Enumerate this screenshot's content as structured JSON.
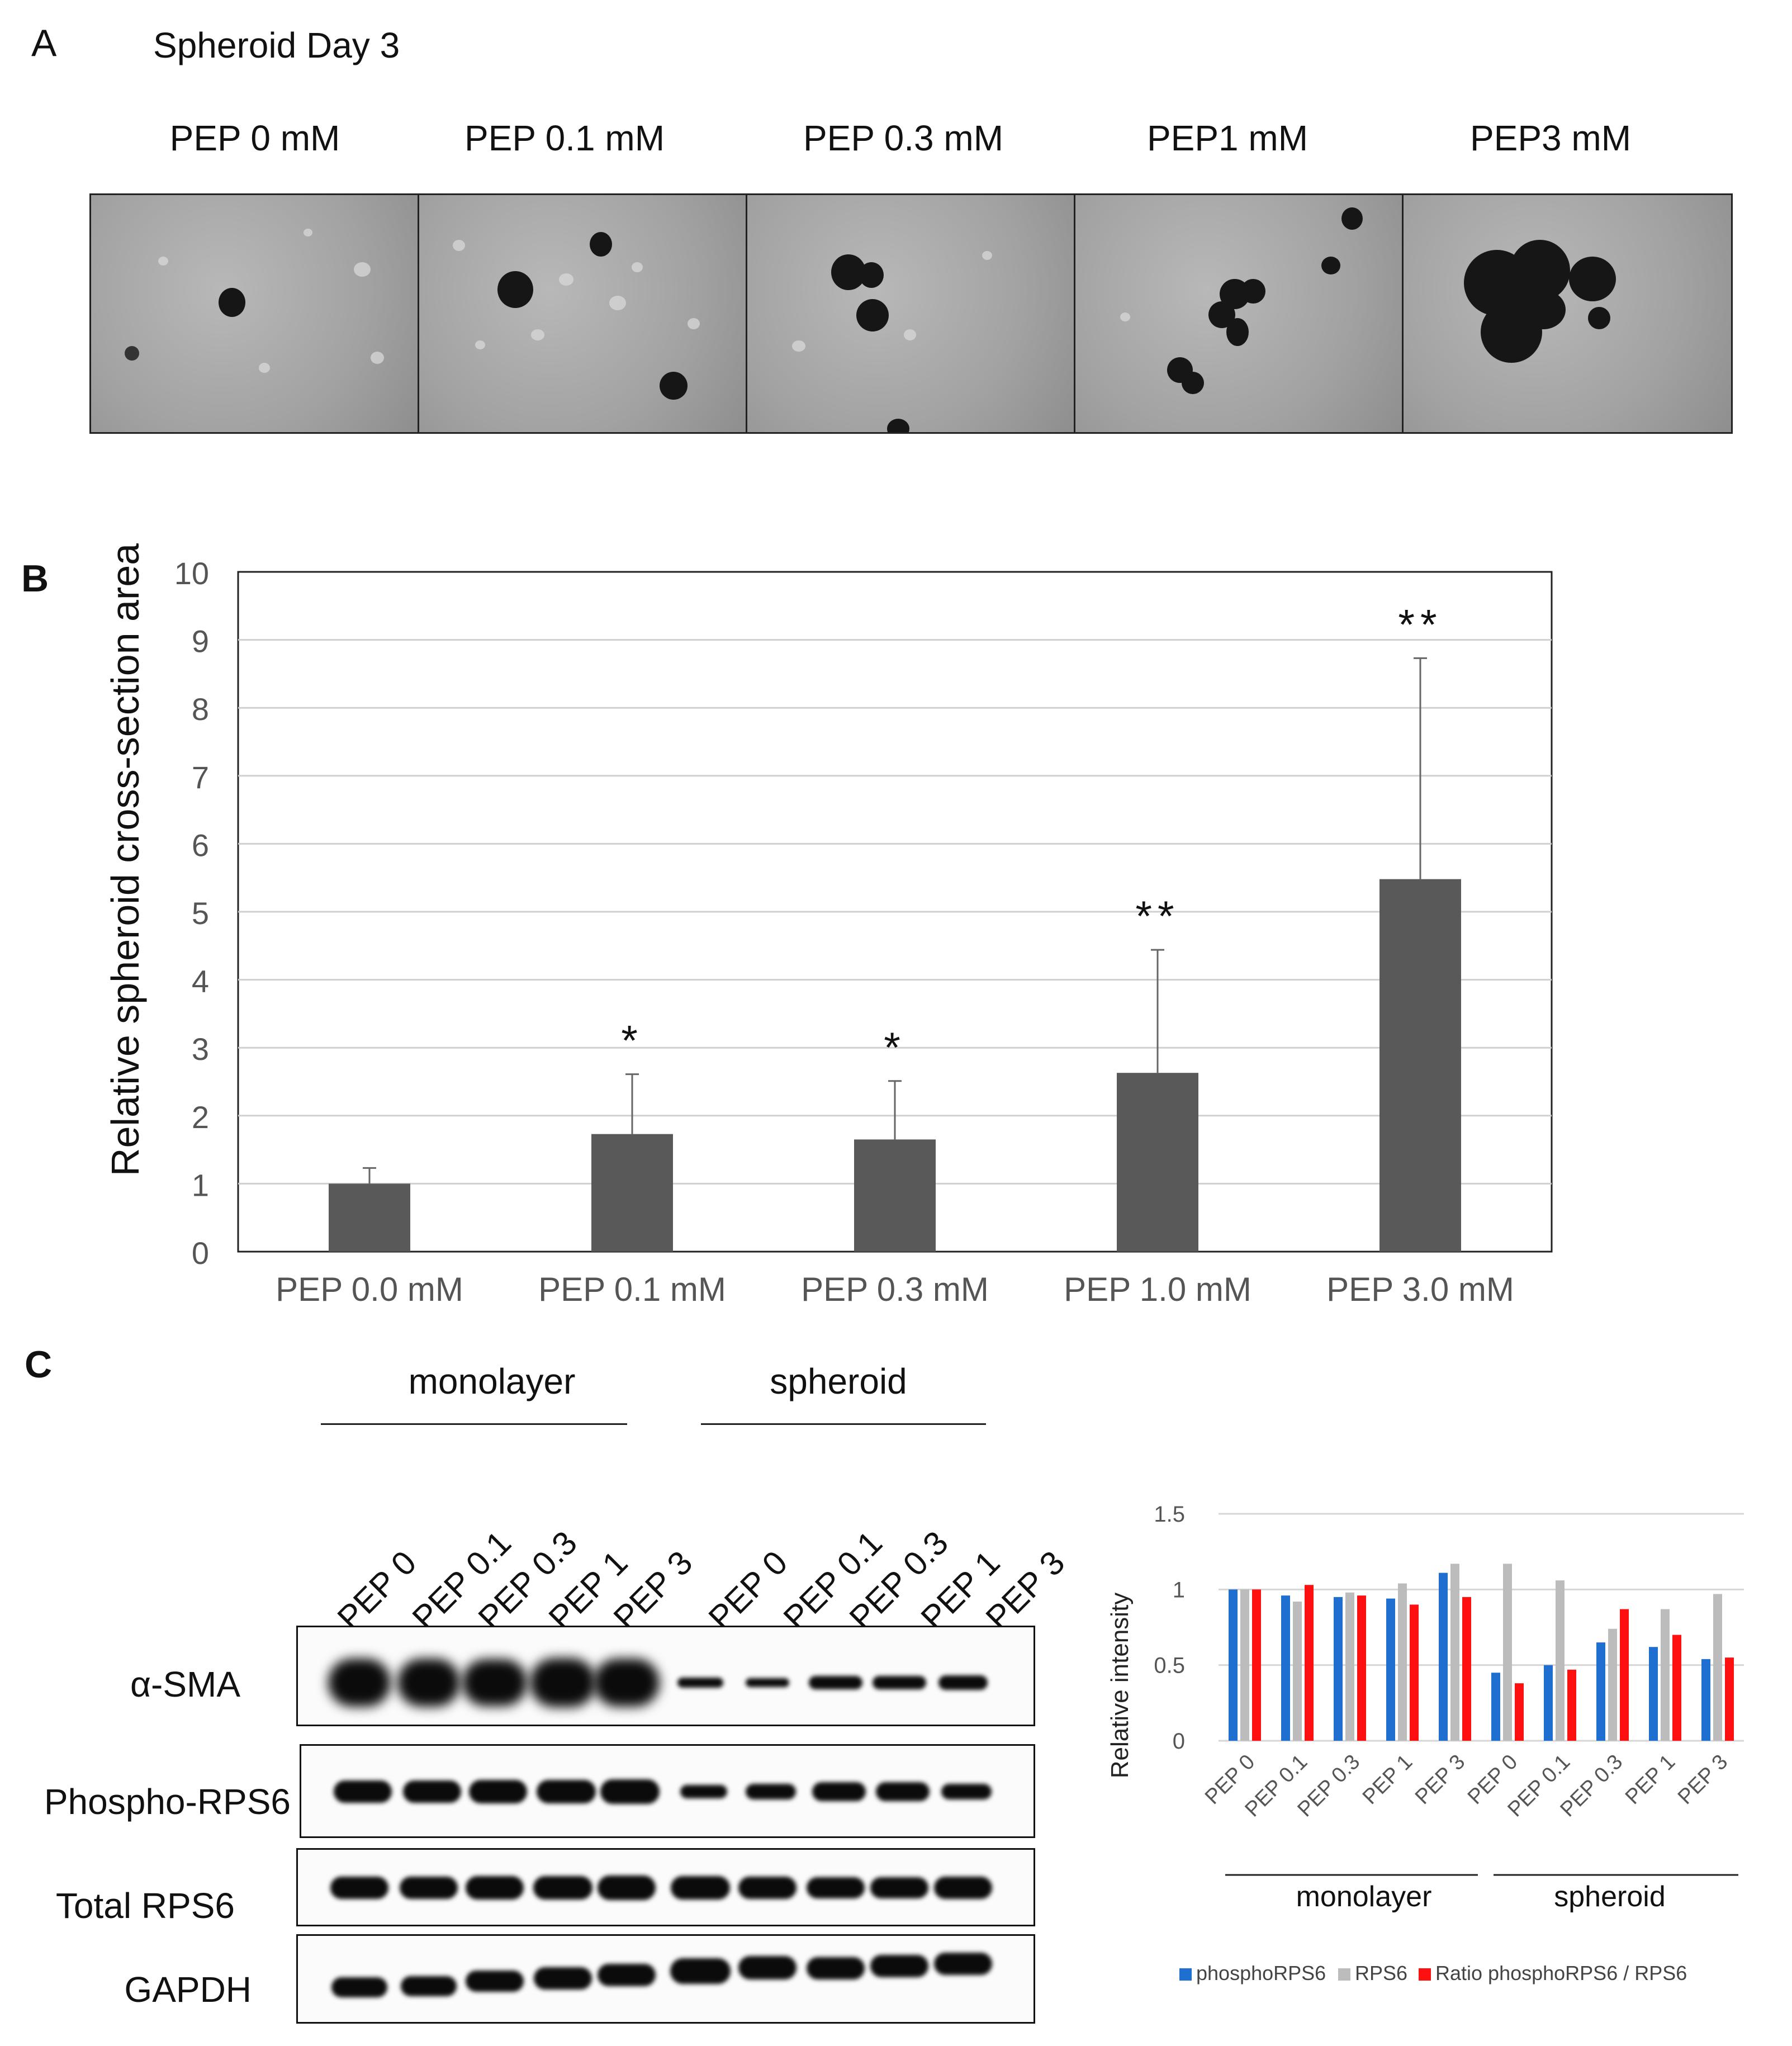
{
  "panel_a": {
    "letter": "A",
    "title": "Spheroid Day 3",
    "conditions": [
      "PEP 0 mM",
      "PEP 0.1 mM",
      "PEP 0.3 mM",
      "PEP1 mM",
      "PEP3 mM"
    ]
  },
  "panel_b": {
    "letter": "B"
  },
  "panel_c": {
    "letter": "C",
    "groups": [
      "monolayer",
      "spheroid"
    ],
    "lanes": [
      "PEP 0",
      "PEP 0.1",
      "PEP 0.3",
      "PEP 1",
      "PEP 3",
      "PEP 0",
      "PEP 0.1",
      "PEP 0.3",
      "PEP 1",
      "PEP 3"
    ],
    "blot_rows": [
      "α-SMA",
      "Phospho-RPS6",
      "Total RPS6",
      "GAPDH"
    ]
  },
  "chart_data": [
    {
      "type": "bar",
      "ylabel": "Relative spheroid cross-section area",
      "categories": [
        "PEP 0.0 mM",
        "PEP 0.1 mM",
        "PEP 0.3 mM",
        "PEP 1.0 mM",
        "PEP 3.0 mM"
      ],
      "values": [
        1.0,
        1.73,
        1.65,
        2.63,
        5.48
      ],
      "errors": [
        0.23,
        0.88,
        0.86,
        1.81,
        3.25
      ],
      "significance": [
        "",
        "*",
        "*",
        "**",
        "**"
      ],
      "ylim": [
        0,
        10
      ],
      "yticks": [
        0,
        1,
        2,
        3,
        4,
        5,
        6,
        7,
        8,
        9,
        10
      ],
      "grid": true,
      "bar_color": "#595959"
    },
    {
      "type": "bar",
      "ylabel": "Relative intensity",
      "categories": [
        "PEP 0",
        "PEP 0.1",
        "PEP 0.3",
        "PEP 1",
        "PEP 3",
        "PEP 0",
        "PEP 0.1",
        "PEP 0.3",
        "PEP 1",
        "PEP 3"
      ],
      "groups": [
        "monolayer",
        "spheroid"
      ],
      "ylim": [
        0,
        1.5
      ],
      "yticks": [
        "0",
        "0.5",
        "1",
        "1.5"
      ],
      "grid": true,
      "legend_position": "bottom",
      "series": [
        {
          "name": "phosphoRPS6",
          "color": "#1f6fd1",
          "values": [
            1.0,
            0.96,
            0.95,
            0.94,
            1.11,
            0.45,
            0.5,
            0.65,
            0.62,
            0.54
          ]
        },
        {
          "name": "RPS6",
          "color": "#bcbcbc",
          "values": [
            1.0,
            0.92,
            0.98,
            1.04,
            1.17,
            1.17,
            1.06,
            0.74,
            0.87,
            0.97
          ]
        },
        {
          "name": "Ratio phosphoRPS6 / RPS6",
          "color": "#ff1010",
          "values": [
            1.0,
            1.03,
            0.96,
            0.9,
            0.95,
            0.38,
            0.47,
            0.87,
            0.7,
            0.55
          ]
        }
      ]
    }
  ]
}
